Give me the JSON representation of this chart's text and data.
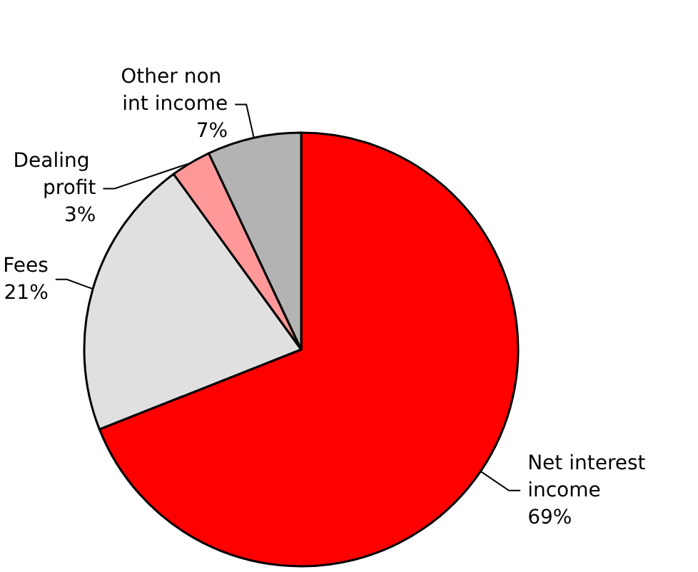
{
  "chart_data": {
    "type": "pie",
    "categories": [
      "Net interest income",
      "Fees",
      "Dealing profit",
      "Other non int income"
    ],
    "values": [
      69,
      21,
      3,
      7
    ],
    "colors": [
      "#ff0000",
      "#e0e0e0",
      "#ff9999",
      "#b3b3b3"
    ],
    "value_labels": [
      "69%",
      "21%",
      "3%",
      "7%"
    ],
    "legend": false
  }
}
